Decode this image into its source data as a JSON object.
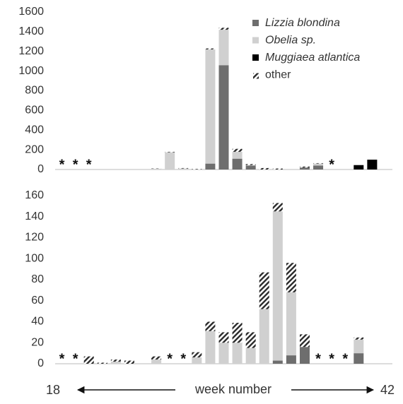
{
  "chart_data": [
    {
      "type": "bar",
      "stacked": true,
      "categories": [
        null,
        null,
        null,
        null,
        null,
        null,
        null,
        null,
        null,
        null,
        null,
        null,
        null,
        null,
        null,
        null,
        null,
        null,
        null,
        null,
        null,
        null,
        null,
        null,
        null
      ],
      "series": [
        {
          "name": "Lizzia blondina",
          "color": "#6e6e6e",
          "values": [
            null,
            null,
            null,
            null,
            null,
            null,
            null,
            null,
            null,
            null,
            null,
            60,
            1060,
            110,
            40,
            null,
            null,
            null,
            20,
            40,
            null,
            null,
            null,
            null,
            null
          ]
        },
        {
          "name": "Obelia sp.",
          "color": "#d0d0d0",
          "values": [
            null,
            null,
            null,
            null,
            null,
            null,
            null,
            8,
            175,
            10,
            null,
            1160,
            360,
            70,
            5,
            null,
            null,
            null,
            null,
            20,
            null,
            null,
            null,
            null,
            null
          ]
        },
        {
          "name": "Muggiaea atlantica",
          "color": "#000000",
          "values": [
            null,
            null,
            null,
            null,
            null,
            null,
            null,
            null,
            null,
            null,
            null,
            null,
            null,
            null,
            null,
            null,
            null,
            null,
            null,
            null,
            null,
            null,
            45,
            100,
            null
          ]
        },
        {
          "name": "other",
          "color": "#333333",
          "hatched": true,
          "values": [
            null,
            null,
            null,
            null,
            null,
            null,
            null,
            3,
            5,
            5,
            5,
            10,
            20,
            30,
            10,
            15,
            10,
            null,
            10,
            5,
            null,
            null,
            null,
            null,
            null
          ]
        }
      ],
      "category_markers": [
        "*",
        "*",
        "*",
        null,
        null,
        null,
        null,
        null,
        null,
        null,
        null,
        null,
        null,
        null,
        null,
        null,
        null,
        null,
        null,
        null,
        "*",
        null,
        null,
        null,
        null
      ],
      "ylim": [
        0,
        1600
      ],
      "yticks": [
        0,
        200,
        400,
        600,
        800,
        1000,
        1200,
        1400,
        1600
      ],
      "legend": "upper right"
    },
    {
      "type": "bar",
      "stacked": true,
      "categories": [
        null,
        null,
        null,
        null,
        null,
        null,
        null,
        null,
        null,
        null,
        null,
        null,
        null,
        null,
        null,
        null,
        null,
        null,
        null,
        null,
        null,
        null,
        null,
        null,
        null
      ],
      "series": [
        {
          "color": "#6e6e6e",
          "values": [
            null,
            null,
            null,
            null,
            null,
            null,
            null,
            null,
            null,
            null,
            null,
            null,
            null,
            null,
            null,
            null,
            3,
            8,
            16,
            null,
            null,
            null,
            10,
            null,
            null
          ]
        },
        {
          "color": "#d0d0d0",
          "values": [
            null,
            null,
            null,
            null,
            2,
            null,
            null,
            4,
            null,
            null,
            6,
            31,
            20,
            20,
            15,
            52,
            142,
            60,
            null,
            null,
            null,
            null,
            13,
            null,
            null
          ]
        },
        {
          "color": "#333333",
          "hatched": true,
          "values": [
            null,
            null,
            7,
            1,
            2,
            3,
            null,
            3,
            null,
            null,
            5,
            9,
            10,
            19,
            15,
            35,
            8,
            28,
            12,
            null,
            null,
            null,
            2,
            null,
            null
          ]
        }
      ],
      "category_markers": [
        "*",
        "*",
        null,
        null,
        null,
        null,
        null,
        null,
        "*",
        "*",
        null,
        null,
        null,
        null,
        null,
        null,
        null,
        null,
        null,
        "*",
        "*",
        "*",
        null,
        null,
        null
      ],
      "ylim": [
        0,
        160
      ],
      "yticks": [
        0,
        20,
        40,
        60,
        80,
        100,
        120,
        140,
        160
      ],
      "xlabel": "week number",
      "x_start": "18",
      "x_end": "42"
    }
  ]
}
